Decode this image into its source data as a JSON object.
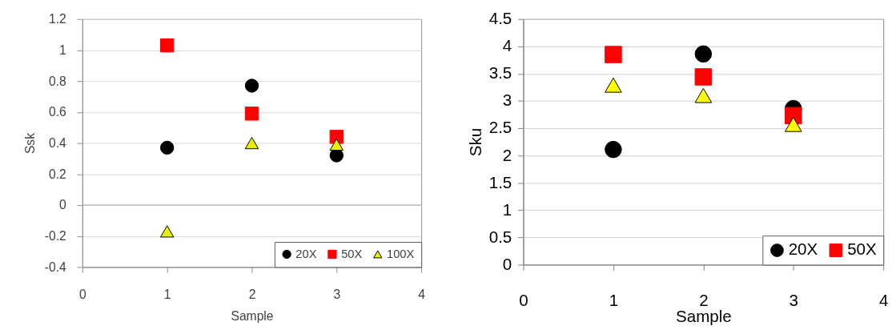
{
  "chart_data": [
    {
      "type": "scatter",
      "xlabel": "Sample",
      "ylabel": "Ssk",
      "x": [
        1,
        2,
        3
      ],
      "xlim": [
        0,
        4
      ],
      "xticks": [
        0,
        1,
        2,
        3,
        4
      ],
      "ylim": [
        -0.4,
        1.2
      ],
      "yticks": [
        -0.4,
        -0.2,
        0,
        0.2,
        0.4,
        0.6,
        0.8,
        1,
        1.2
      ],
      "grid": "y",
      "legend": "bottom right",
      "ref_lines": [
        {
          "axis": "y",
          "value": 0,
          "color": "#a6a6a6"
        }
      ],
      "series": [
        {
          "name": "20X",
          "color": "#000000",
          "marker": "circle",
          "values": [
            0.37,
            0.77,
            0.32
          ]
        },
        {
          "name": "50X",
          "color": "#ff0000",
          "marker": "square",
          "values": [
            1.03,
            0.59,
            0.44
          ]
        },
        {
          "name": "100X",
          "color": "#e8f000",
          "marker": "triangle",
          "values": [
            -0.17,
            0.4,
            0.39
          ]
        }
      ]
    },
    {
      "type": "scatter",
      "xlabel": "Sample",
      "ylabel": "Sku",
      "x": [
        1,
        2,
        3
      ],
      "xlim": [
        0,
        4
      ],
      "xticks": [
        0,
        1,
        2,
        3,
        4
      ],
      "ylim": [
        0,
        4.5
      ],
      "yticks": [
        0,
        0.5,
        1,
        1.5,
        2,
        2.5,
        3,
        3.5,
        4,
        4.5
      ],
      "grid": "y",
      "legend": "bottom right",
      "series": [
        {
          "name": "20X",
          "color": "#000000",
          "marker": "circle",
          "values": [
            2.11,
            3.86,
            2.86
          ]
        },
        {
          "name": "50X",
          "color": "#ff0000",
          "marker": "square",
          "values": [
            3.85,
            3.44,
            2.73
          ]
        },
        {
          "color": "#ffff00",
          "marker": "triangle",
          "values": [
            3.29,
            3.1,
            2.57
          ]
        }
      ]
    }
  ]
}
